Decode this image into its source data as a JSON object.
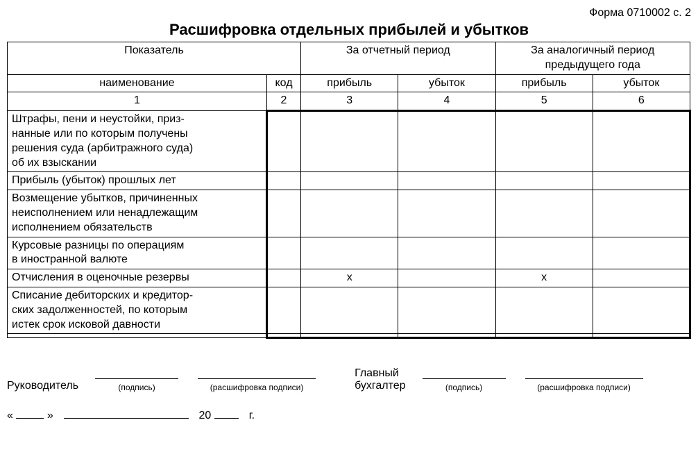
{
  "form_header": "Форма 0710002 с. 2",
  "title": "Расшифровка отдельных прибылей и убытков",
  "table": {
    "header": {
      "indicator": "Показатель",
      "reporting_period": "За отчетный период",
      "previous_period": "За аналогичный период предыдущего года",
      "name": "наименование",
      "code": "код",
      "profit": "прибыль",
      "loss": "убыток",
      "col_nums": [
        "1",
        "2",
        "3",
        "4",
        "5",
        "6"
      ]
    },
    "rows": [
      {
        "name": "Штрафы, пени и неустойки, приз-\nнанные или по которым получены\nрешения суда (арбитражного суда)\nоб их взыскании",
        "code": "",
        "c3": "",
        "c4": "",
        "c5": "",
        "c6": ""
      },
      {
        "name": "Прибыль (убыток) прошлых лет",
        "code": "",
        "c3": "",
        "c4": "",
        "c5": "",
        "c6": ""
      },
      {
        "name": "Возмещение убытков, причиненных\nнеисполнением или ненадлежащим\nисполнением обязательств",
        "code": "",
        "c3": "",
        "c4": "",
        "c5": "",
        "c6": ""
      },
      {
        "name": "Курсовые разницы по операциям\nв иностранной валюте",
        "code": "",
        "c3": "",
        "c4": "",
        "c5": "",
        "c6": ""
      },
      {
        "name": "Отчисления в оценочные резервы",
        "code": "",
        "c3": "x",
        "c4": "",
        "c5": "x",
        "c6": ""
      },
      {
        "name": "Списание дебиторских и кредитор-\nских задолженностей, по которым\nистек срок исковой давности",
        "code": "",
        "c3": "",
        "c4": "",
        "c5": "",
        "c6": ""
      },
      {
        "name": "",
        "code": "",
        "c3": "",
        "c4": "",
        "c5": "",
        "c6": ""
      }
    ]
  },
  "signatures": {
    "director": "Руководитель",
    "chief_accountant_line1": "Главный",
    "chief_accountant_line2": "бухгалтер",
    "signature_sub": "(подпись)",
    "decipher_sub": "(расшифровка подписи)",
    "date_quote_open": "«",
    "date_quote_close": "»",
    "year_prefix": "20",
    "year_suffix": "г."
  }
}
